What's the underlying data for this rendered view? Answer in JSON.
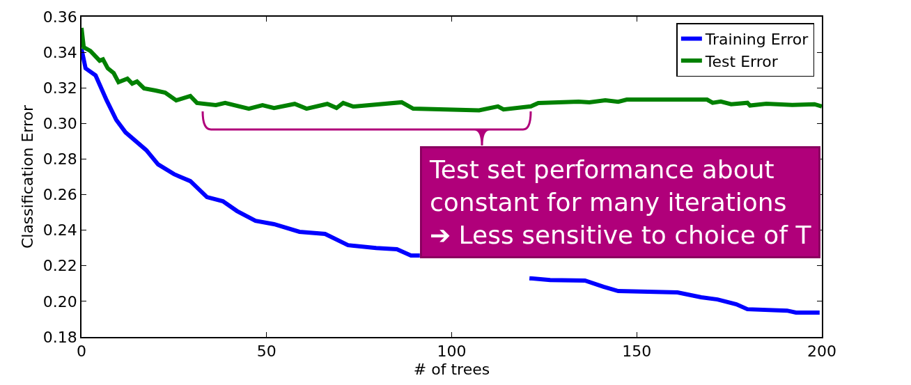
{
  "chart_data": {
    "type": "line",
    "xlabel": "# of trees",
    "ylabel": "Classification Error",
    "xlim": [
      0,
      200
    ],
    "xticks": [
      0,
      50,
      100,
      150,
      200
    ],
    "ylim": [
      0.18,
      0.36
    ],
    "yticks": [
      {
        "value": 0.18,
        "label": "0.18"
      },
      {
        "value": 0.2,
        "label": "0.20"
      },
      {
        "value": 0.22,
        "label": "0.22"
      },
      {
        "value": 0.24,
        "label": "0.24"
      },
      {
        "value": 0.26,
        "label": "0.26"
      },
      {
        "value": 0.28,
        "label": "0.28"
      },
      {
        "value": 0.3,
        "label": "0.30"
      },
      {
        "value": 0.32,
        "label": "0.32"
      },
      {
        "value": 0.34,
        "label": "0.34"
      },
      {
        "value": 0.36,
        "label": "0.36"
      }
    ],
    "grid": false,
    "legend": "top right",
    "marker": "none",
    "line_style": "solid",
    "series": [
      {
        "name": "Training Error",
        "color": "#0000ff",
        "x": [
          0,
          1.1,
          3.8,
          6.8,
          9.4,
          11.9,
          17.5,
          20.7,
          25,
          29.4,
          33.9,
          38.2,
          42,
          47,
          52,
          58.9,
          65.8,
          72,
          79.6,
          85.2,
          89,
          91.4,
          92,
          121,
          126.6,
          136,
          141,
          145,
          161,
          167.4,
          171.8,
          176.9,
          179.9,
          190.6,
          193,
          199.4
        ],
        "values": [
          0.342,
          0.331,
          0.327,
          0.313,
          0.302,
          0.295,
          0.285,
          0.277,
          0.2715,
          0.2676,
          0.2586,
          0.2563,
          0.2508,
          0.2453,
          0.2434,
          0.2391,
          0.2379,
          0.2316,
          0.23,
          0.2293,
          0.2258,
          0.2258,
          null,
          0.213,
          0.212,
          0.2117,
          0.2082,
          0.2058,
          0.205,
          0.2023,
          0.2011,
          0.1984,
          0.1956,
          0.1948,
          0.1937,
          0.1937
        ]
      },
      {
        "name": "Test Error",
        "color": "#008000",
        "x": [
          0,
          0.6,
          2.4,
          4.9,
          5.8,
          7.1,
          8.7,
          10,
          12.4,
          13.7,
          15,
          16.9,
          20,
          22.6,
          25.6,
          29.4,
          31.2,
          36.3,
          38.8,
          45.2,
          48.9,
          52,
          57.6,
          60.8,
          66.4,
          68.9,
          70.7,
          73.4,
          86.5,
          89.6,
          107.4,
          112.5,
          114,
          121.4,
          123.4,
          134.3,
          137.2,
          141.5,
          145,
          147.3,
          169,
          170.5,
          172.7,
          175.5,
          179.9,
          180.6,
          185,
          192,
          198,
          200
        ],
        "values": [
          0.3537,
          0.3428,
          0.3408,
          0.3353,
          0.336,
          0.331,
          0.3283,
          0.3232,
          0.3252,
          0.3224,
          0.3236,
          0.3197,
          0.3185,
          0.3173,
          0.313,
          0.3154,
          0.3115,
          0.3103,
          0.3115,
          0.3083,
          0.3103,
          0.3087,
          0.311,
          0.3083,
          0.311,
          0.3087,
          0.3115,
          0.3095,
          0.3119,
          0.3083,
          0.3074,
          0.3096,
          0.3079,
          0.3096,
          0.3115,
          0.3123,
          0.3119,
          0.313,
          0.3122,
          0.3134,
          0.3134,
          0.3116,
          0.3123,
          0.3108,
          0.3116,
          0.3101,
          0.3111,
          0.3104,
          0.3108,
          0.3096
        ]
      }
    ],
    "annotations": [
      "Test set performance about\nconstant for many iterations\n➔ Less sensitive to choice of T"
    ]
  }
}
